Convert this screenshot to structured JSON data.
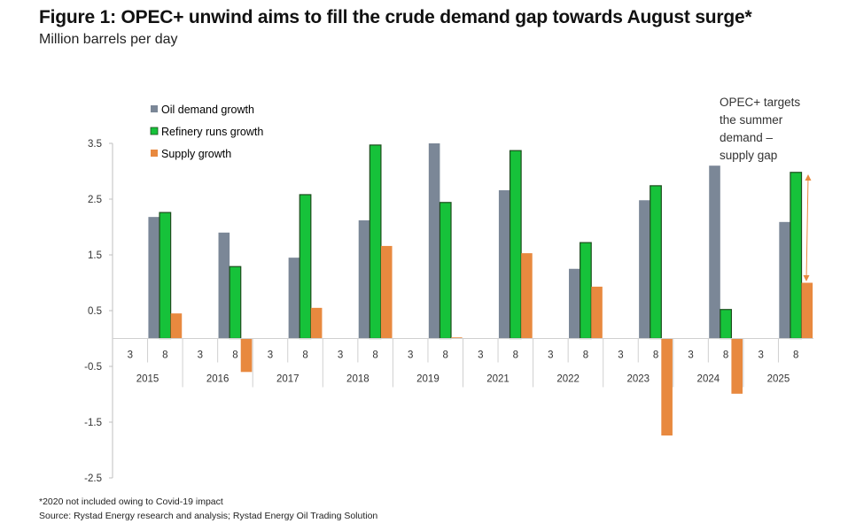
{
  "title": "Figure 1: OPEC+ unwind aims to fill the crude demand gap towards August surge*",
  "subtitle": "Million barrels per day",
  "footnote": "*2020 not included owing to Covid-19 impact",
  "source": "Source: Rystad Energy research and analysis; Rystad Energy Oil Trading Solution",
  "chart_data": {
    "type": "bar",
    "title": "",
    "xlabel": "",
    "ylabel": "",
    "ylim": [
      -2.5,
      3.5
    ],
    "yticks": [
      "3.5",
      "2.5",
      "1.5",
      "0.5",
      "-0.5",
      "-1.5",
      "-2.5"
    ],
    "grid": false,
    "legend_position": "top-left",
    "years": [
      "2015",
      "2016",
      "2017",
      "2018",
      "2019",
      "2021",
      "2022",
      "2023",
      "2024",
      "2025"
    ],
    "months": [
      "3",
      "8"
    ],
    "series": [
      {
        "name": "Oil demand growth",
        "color": "#7b8797",
        "month": "8",
        "values": [
          2.18,
          1.9,
          1.45,
          2.12,
          3.5,
          2.66,
          1.25,
          2.48,
          3.1,
          2.09
        ]
      },
      {
        "name": "Refinery runs growth",
        "color": "#16c23a",
        "month": "8",
        "values": [
          2.26,
          1.29,
          2.58,
          3.47,
          2.44,
          3.37,
          1.72,
          2.74,
          0.52,
          2.98
        ]
      },
      {
        "name": "Supply growth",
        "color": "#e8893f",
        "month": "8",
        "values": [
          0.45,
          -0.6,
          0.55,
          1.66,
          0.02,
          1.53,
          0.93,
          -1.74,
          -0.99,
          1.0
        ]
      }
    ],
    "annotation": {
      "lines": [
        "OPEC+ targets",
        "the summer",
        "demand –",
        "supply gap"
      ],
      "arrow_color": "#e8893f"
    }
  }
}
